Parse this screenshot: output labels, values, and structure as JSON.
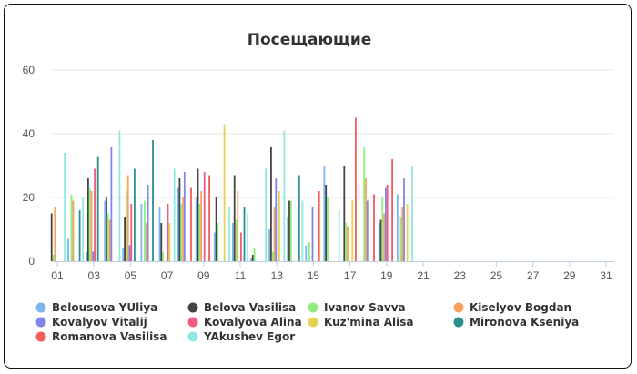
{
  "chart_data": {
    "type": "bar",
    "title": "Посещающие",
    "xlabel": "",
    "ylabel": "",
    "ylim": [
      0,
      60
    ],
    "y_ticks": [
      0,
      20,
      40,
      60
    ],
    "x_range": [
      1,
      31
    ],
    "x_tick_labels": [
      "01",
      "03",
      "05",
      "07",
      "09",
      "11",
      "13",
      "15",
      "17",
      "19",
      "21",
      "23",
      "25",
      "27",
      "29",
      "31"
    ],
    "grid": true,
    "legend_position": "bottom",
    "series": [
      {
        "name": "Belousova YUliya",
        "color": "#7cb5ec",
        "values": [
          0,
          7,
          3,
          19,
          4,
          18,
          17,
          23,
          20,
          9,
          12,
          1,
          10,
          14,
          5,
          30,
          0,
          0,
          12,
          21
        ]
      },
      {
        "name": "Belova Vasilisa",
        "color": "#434348",
        "values": [
          15,
          0,
          26,
          20,
          14,
          0,
          12,
          26,
          29,
          20,
          27,
          2,
          36,
          19,
          0,
          24,
          30,
          0,
          13,
          0
        ]
      },
      {
        "name": "Ivanov Savva",
        "color": "#90ed7d",
        "values": [
          2,
          21,
          23,
          15,
          22,
          19,
          3,
          18,
          18,
          12,
          13,
          4,
          3,
          19,
          6,
          20,
          12,
          36,
          20,
          14
        ]
      },
      {
        "name": "Kiselyov Bogdan",
        "color": "#f7a35c",
        "values": [
          17,
          19,
          22,
          13,
          27,
          12,
          0,
          20,
          22,
          0,
          22,
          0,
          17,
          0,
          0,
          0,
          11,
          26,
          15,
          17
        ]
      },
      {
        "name": "Kovalyov Vitalij",
        "color": "#8085e9",
        "values": [
          0,
          0,
          3,
          36,
          5,
          24,
          0,
          28,
          0,
          0,
          0,
          0,
          26,
          0,
          17,
          0,
          0,
          19,
          23,
          26
        ]
      },
      {
        "name": "Kovalyova Alina",
        "color": "#f15c80",
        "values": [
          0,
          0,
          29,
          0,
          18,
          0,
          18,
          0,
          28,
          0,
          9,
          0,
          0,
          0,
          0,
          0,
          0,
          0,
          24,
          0
        ]
      },
      {
        "name": "Kuz'mina Alisa",
        "color": "#e4d354",
        "values": [
          0,
          0,
          0,
          0,
          0,
          0,
          12,
          0,
          0,
          43,
          0,
          0,
          22,
          0,
          0,
          0,
          19,
          0,
          0,
          18
        ]
      },
      {
        "name": "Mironova Kseniya",
        "color": "#2b908f",
        "values": [
          0,
          16,
          33,
          0,
          29,
          38,
          0,
          0,
          0,
          0,
          17,
          0,
          0,
          27,
          0,
          0,
          0,
          0,
          0,
          0
        ]
      },
      {
        "name": "Romanova Vasilisa",
        "color": "#f45b5b",
        "values": [
          0,
          0,
          0,
          0,
          0,
          0,
          0,
          23,
          27,
          0,
          0,
          0,
          0,
          0,
          22,
          0,
          45,
          21,
          32,
          0
        ]
      },
      {
        "name": "YAkushev Egor",
        "color": "#91e8e1",
        "values": [
          34,
          20,
          0,
          41,
          0,
          0,
          29,
          0,
          0,
          17,
          15,
          29,
          41,
          19,
          0,
          16,
          0,
          0,
          0,
          30
        ]
      }
    ]
  }
}
